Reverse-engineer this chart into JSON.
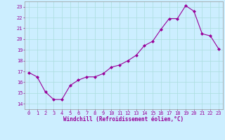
{
  "x": [
    0,
    1,
    2,
    3,
    4,
    5,
    6,
    7,
    8,
    9,
    10,
    11,
    12,
    13,
    14,
    15,
    16,
    17,
    18,
    19,
    20,
    21,
    22,
    23
  ],
  "y": [
    16.9,
    16.5,
    15.1,
    14.4,
    14.4,
    15.7,
    16.2,
    16.5,
    16.5,
    16.8,
    17.4,
    17.6,
    18.0,
    18.5,
    19.4,
    19.8,
    20.9,
    21.9,
    21.9,
    23.1,
    22.6,
    20.5,
    20.3,
    19.1
  ],
  "line_color": "#990099",
  "marker": "D",
  "marker_size": 2.0,
  "bg_color": "#cceeff",
  "grid_color": "#aadddd",
  "xlabel": "Windchill (Refroidissement éolien,°C)",
  "xlim": [
    -0.5,
    23.5
  ],
  "ylim": [
    13.5,
    23.5
  ],
  "yticks": [
    14,
    15,
    16,
    17,
    18,
    19,
    20,
    21,
    22,
    23
  ],
  "xticks": [
    0,
    1,
    2,
    3,
    4,
    5,
    6,
    7,
    8,
    9,
    10,
    11,
    12,
    13,
    14,
    15,
    16,
    17,
    18,
    19,
    20,
    21,
    22,
    23
  ],
  "tick_color": "#990099",
  "label_color": "#990099",
  "axis_color": "#999999",
  "tick_fontsize": 5.0,
  "xlabel_fontsize": 5.5
}
